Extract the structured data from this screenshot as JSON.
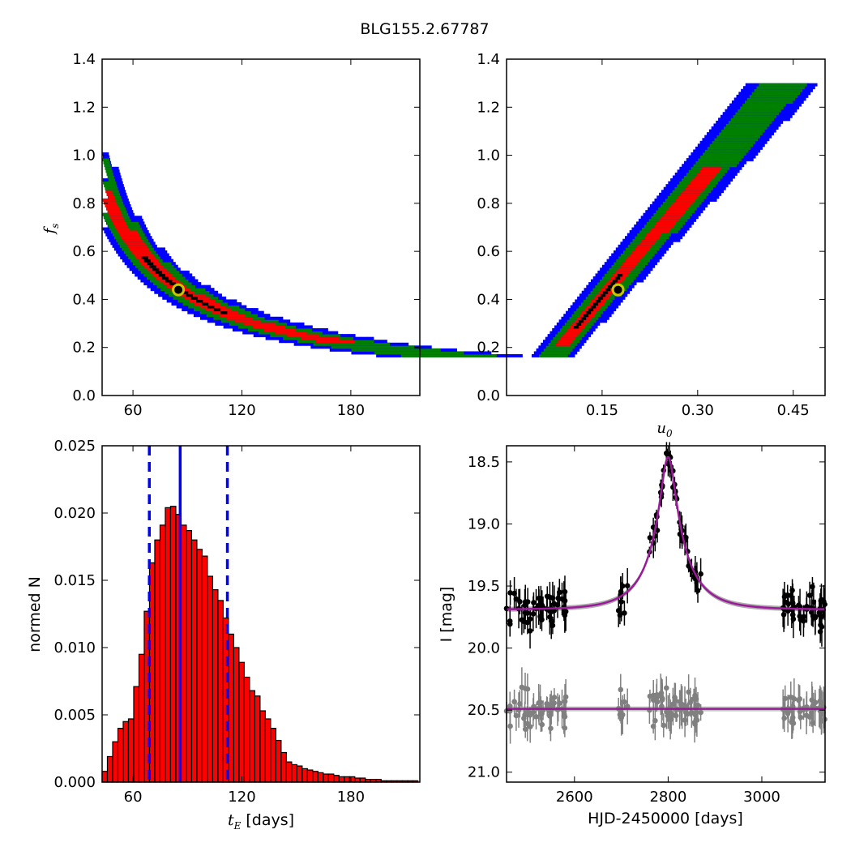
{
  "figure_title": "BLG155.2.67787",
  "colors": {
    "blue": "#0000ff",
    "green": "#008000",
    "red": "#ff0000",
    "black": "#000000",
    "marker_ring": "#c8c800",
    "model": "#9a1a9a",
    "residual_grey": "#808080"
  },
  "chart_data": [
    {
      "type": "heatmap",
      "panel": "tE-fs",
      "xlabel": "",
      "ylabel": "fs",
      "ylabel_main": "f",
      "ylabel_sub": "s",
      "xlim": [
        43,
        218
      ],
      "ylim": [
        0.0,
        1.4
      ],
      "xticks": [
        60,
        120,
        180
      ],
      "xtick_labels": [
        "60",
        "120",
        "180"
      ],
      "yticks": [
        0.0,
        0.2,
        0.4,
        0.6,
        0.8,
        1.0,
        1.2,
        1.4
      ],
      "ytick_labels": [
        "0.0",
        "0.2",
        "0.4",
        "0.6",
        "0.8",
        "1.0",
        "1.2",
        "1.4"
      ],
      "confidence_levels": [
        "blue",
        "green",
        "red",
        "black"
      ],
      "best_fit": {
        "x": 85,
        "y": 0.44
      }
    },
    {
      "type": "heatmap",
      "panel": "u0-fs",
      "xlabel": "u0",
      "xlabel_main": "u",
      "xlabel_sub": "0",
      "ylabel": "",
      "xlim": [
        0.0,
        0.5
      ],
      "ylim": [
        0.0,
        1.4
      ],
      "xticks": [
        0.15,
        0.3,
        0.45
      ],
      "xtick_labels": [
        "0.15",
        "0.30",
        "0.45"
      ],
      "yticks": [
        0.0,
        0.2,
        0.4,
        0.6,
        0.8,
        1.0,
        1.2,
        1.4
      ],
      "ytick_labels": [
        "0.0",
        "0.2",
        "0.4",
        "0.6",
        "0.8",
        "1.0",
        "1.2",
        "1.4"
      ],
      "confidence_levels": [
        "blue",
        "green",
        "red",
        "black"
      ],
      "best_fit": {
        "x": 0.175,
        "y": 0.44
      }
    },
    {
      "type": "bar",
      "panel": "tE-histogram",
      "xlabel": "tE [days]",
      "xlabel_main": "t",
      "xlabel_sub": "E",
      "xlabel_unit": "[days]",
      "ylabel": "normed N",
      "xlim": [
        43,
        218
      ],
      "ylim": [
        0.0,
        0.025
      ],
      "xticks": [
        60,
        120,
        180
      ],
      "xtick_labels": [
        "60",
        "120",
        "180"
      ],
      "yticks": [
        0.0,
        0.005,
        0.01,
        0.015,
        0.02,
        0.025
      ],
      "ytick_labels": [
        "0.000",
        "0.005",
        "0.010",
        "0.015",
        "0.020",
        "0.025"
      ],
      "bin_start": 43,
      "bin_width": 2.9,
      "values": [
        0.0008,
        0.0019,
        0.003,
        0.004,
        0.0045,
        0.0047,
        0.0071,
        0.0095,
        0.0127,
        0.0163,
        0.018,
        0.0191,
        0.0204,
        0.0205,
        0.0199,
        0.0191,
        0.0187,
        0.018,
        0.0173,
        0.0168,
        0.0153,
        0.0143,
        0.0135,
        0.0122,
        0.011,
        0.01,
        0.0089,
        0.0078,
        0.0068,
        0.0064,
        0.0053,
        0.0047,
        0.004,
        0.0031,
        0.0022,
        0.0015,
        0.0013,
        0.0012,
        0.001,
        0.0009,
        0.0008,
        0.0007,
        0.0006,
        0.0006,
        0.0005,
        0.0004,
        0.0004,
        0.0004,
        0.0003,
        0.0003,
        0.0002,
        0.0002,
        0.0002,
        0.0001,
        0.0001,
        0.0001,
        0.0001,
        0.0001,
        0.0001,
        0.0001
      ],
      "vlines": [
        {
          "x": 86,
          "style": "solid"
        },
        {
          "x": 69,
          "style": "dashed"
        },
        {
          "x": 112,
          "style": "dashed"
        }
      ]
    },
    {
      "type": "scatter",
      "panel": "light-curve",
      "xlabel": "HJD-2450000 [days]",
      "ylabel": "I [mag]",
      "xlim": [
        2455,
        3135
      ],
      "ylim": [
        21.08,
        18.37
      ],
      "y_inverted": true,
      "xticks": [
        2600,
        2800,
        3000
      ],
      "xtick_labels": [
        "2600",
        "2800",
        "3000"
      ],
      "yticks": [
        18.5,
        19.0,
        19.5,
        20.0,
        20.5,
        21.0
      ],
      "ytick_labels": [
        "18.5",
        "19.0",
        "19.5",
        "20.0",
        "20.5",
        "21.0"
      ],
      "model": {
        "t0": 2800,
        "tE": 86,
        "u0": 0.175,
        "fs": 0.44,
        "I_base": 19.69
      },
      "residual_baseline": 20.49,
      "data_seed": 7
    }
  ]
}
